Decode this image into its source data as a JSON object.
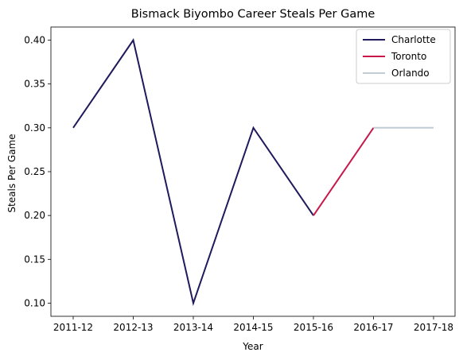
{
  "chart_data": {
    "type": "line",
    "title": "Bismack Biyombo Career Steals Per Game",
    "xlabel": "Year",
    "ylabel": "Steals Per Game",
    "categories": [
      "2011-12",
      "2012-13",
      "2013-14",
      "2014-15",
      "2015-16",
      "2016-17",
      "2017-18"
    ],
    "ylim": [
      0.085,
      0.415
    ],
    "yticks": [
      0.1,
      0.15,
      0.2,
      0.25,
      0.3,
      0.35,
      0.4
    ],
    "ytick_labels": [
      "0.10",
      "0.15",
      "0.20",
      "0.25",
      "0.30",
      "0.35",
      "0.40"
    ],
    "grid": false,
    "legend_position": "top-right",
    "series": [
      {
        "name": "Charlotte",
        "color": "#1f1a5c",
        "points": [
          {
            "x": "2011-12",
            "y": 0.3
          },
          {
            "x": "2012-13",
            "y": 0.4
          },
          {
            "x": "2013-14",
            "y": 0.1
          },
          {
            "x": "2014-15",
            "y": 0.3
          },
          {
            "x": "2015-16",
            "y": 0.2
          }
        ]
      },
      {
        "name": "Toronto",
        "color": "#c8184a",
        "points": [
          {
            "x": "2015-16",
            "y": 0.2
          },
          {
            "x": "2016-17",
            "y": 0.3
          }
        ]
      },
      {
        "name": "Orlando",
        "color": "#c0ccd6",
        "points": [
          {
            "x": "2016-17",
            "y": 0.3
          },
          {
            "x": "2017-18",
            "y": 0.3
          }
        ]
      }
    ]
  }
}
